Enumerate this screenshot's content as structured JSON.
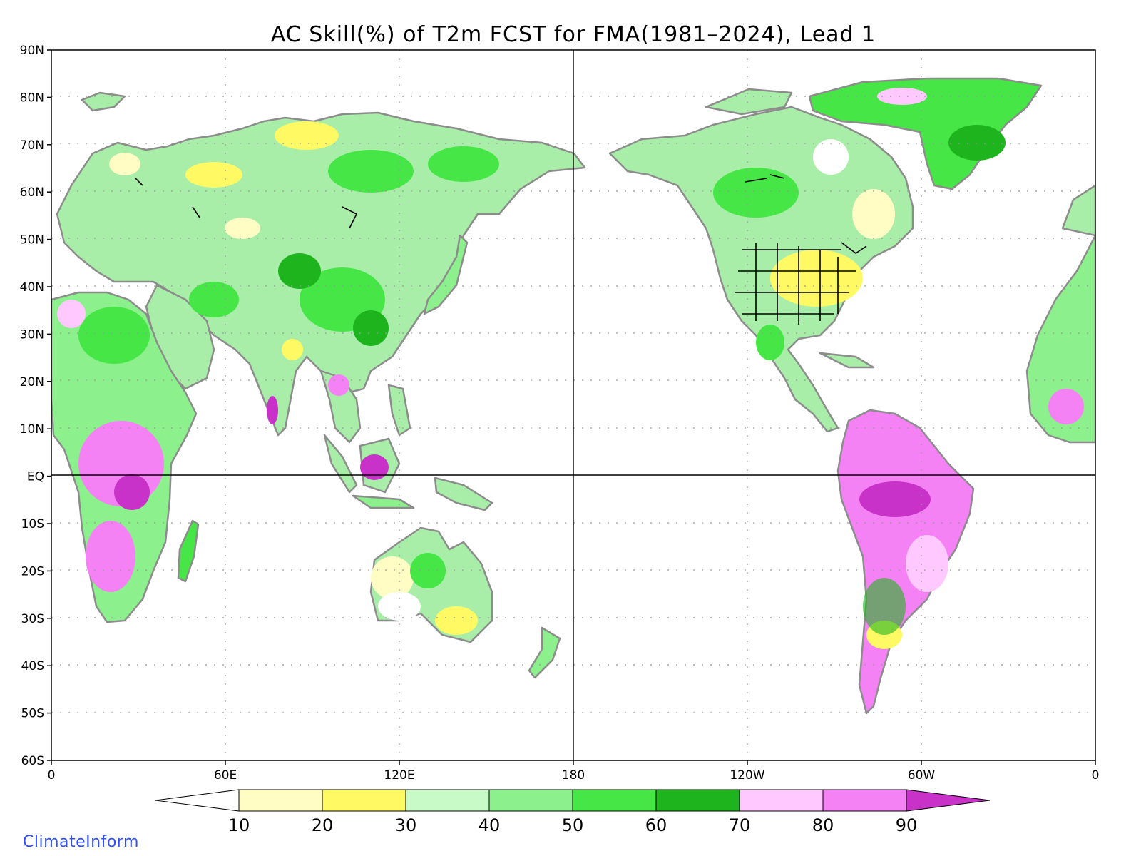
{
  "title": "AC Skill(%) of T2m FCST for FMA(1981–2024), Lead 1",
  "credit": "ClimateInform",
  "map": {
    "lat_range": [
      -60,
      90
    ],
    "lon_range": [
      0,
      360
    ],
    "lat_ticks": [
      "90N",
      "80N",
      "70N",
      "60N",
      "50N",
      "40N",
      "30N",
      "20N",
      "10N",
      "EQ",
      "10S",
      "20S",
      "30S",
      "40S",
      "50S",
      "60S"
    ],
    "lon_ticks": [
      "0",
      "60E",
      "120E",
      "180",
      "120W",
      "60W",
      "0"
    ],
    "gridlines": "dotted",
    "reference_lines": [
      "EQ",
      "180"
    ],
    "colors": {
      "coast": "#8c8c8c",
      "lakes": "#000000",
      "us_states": "#000000"
    }
  },
  "colorbar": {
    "labels": [
      "10",
      "20",
      "30",
      "40",
      "50",
      "60",
      "70",
      "80",
      "90"
    ],
    "colors": [
      "#ffffff",
      "#fffcc4",
      "#fffa64",
      "#c8fac8",
      "#8cf08c",
      "#46e646",
      "#1eb41e",
      "#ffc8ff",
      "#f582f5",
      "#c832c8"
    ],
    "extend": "both"
  }
}
